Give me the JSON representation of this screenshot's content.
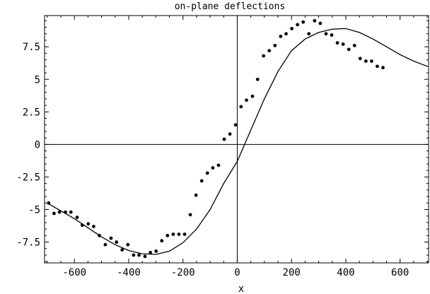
{
  "chart_data": {
    "type": "scatter",
    "title": "on-plane deflections",
    "xlabel": "x",
    "ylabel": "",
    "xlim": [
      -710,
      705
    ],
    "ylim": [
      -9.1,
      9.9
    ],
    "grid": false,
    "xticks": [
      -600,
      -400,
      -200,
      0,
      200,
      400,
      600
    ],
    "xtick_labels": [
      "-600",
      "-400",
      "-200",
      "0",
      "200",
      "400",
      "600"
    ],
    "yticks": [
      -7.5,
      -5,
      -2.5,
      0,
      2.5,
      5,
      7.5
    ],
    "ytick_labels": [
      "-7.5",
      "-5",
      "-2.5",
      "0",
      "2.5",
      "5",
      "7.5"
    ],
    "series": [
      {
        "mode": "markers",
        "color": "#000000",
        "points": [
          [
            -695,
            -4.5
          ],
          [
            -675,
            -5.3
          ],
          [
            -655,
            -5.2
          ],
          [
            -633,
            -5.2
          ],
          [
            -613,
            -5.2
          ],
          [
            -590,
            -5.6
          ],
          [
            -571,
            -6.2
          ],
          [
            -549,
            -6.1
          ],
          [
            -529,
            -6.3
          ],
          [
            -508,
            -7.0
          ],
          [
            -486,
            -7.7
          ],
          [
            -465,
            -7.2
          ],
          [
            -445,
            -7.5
          ],
          [
            -424,
            -8.1
          ],
          [
            -403,
            -7.7
          ],
          [
            -382,
            -8.5
          ],
          [
            -362,
            -8.5
          ],
          [
            -340,
            -8.6
          ],
          [
            -320,
            -8.3
          ],
          [
            -299,
            -8.2
          ],
          [
            -278,
            -7.4
          ],
          [
            -257,
            -7.0
          ],
          [
            -236,
            -6.9
          ],
          [
            -215,
            -6.9
          ],
          [
            -194,
            -6.9
          ],
          [
            -173,
            -5.4
          ],
          [
            -152,
            -3.9
          ],
          [
            -131,
            -2.8
          ],
          [
            -110,
            -2.2
          ],
          [
            -90,
            -1.8
          ],
          [
            -69,
            -1.6
          ],
          [
            -48,
            0.4
          ],
          [
            -27,
            0.8
          ],
          [
            -6,
            1.5
          ],
          [
            14,
            2.9
          ],
          [
            34,
            3.4
          ],
          [
            56,
            3.7
          ],
          [
            75,
            5.0
          ],
          [
            97,
            6.8
          ],
          [
            118,
            7.2
          ],
          [
            139,
            7.6
          ],
          [
            160,
            8.3
          ],
          [
            180,
            8.5
          ],
          [
            201,
            8.9
          ],
          [
            222,
            9.2
          ],
          [
            243,
            9.4
          ],
          [
            264,
            8.5
          ],
          [
            285,
            9.5
          ],
          [
            306,
            9.3
          ],
          [
            327,
            8.5
          ],
          [
            348,
            8.4
          ],
          [
            369,
            7.8
          ],
          [
            390,
            7.7
          ],
          [
            411,
            7.3
          ],
          [
            432,
            7.6
          ],
          [
            453,
            6.6
          ],
          [
            474,
            6.4
          ],
          [
            495,
            6.4
          ],
          [
            516,
            6.0
          ],
          [
            537,
            5.9
          ]
        ]
      },
      {
        "mode": "line",
        "color": "#000000",
        "points": [
          [
            -700,
            -4.5
          ],
          [
            -650,
            -5.1
          ],
          [
            -600,
            -5.7
          ],
          [
            -550,
            -6.4
          ],
          [
            -500,
            -7.1
          ],
          [
            -450,
            -7.7
          ],
          [
            -400,
            -8.15
          ],
          [
            -350,
            -8.4
          ],
          [
            -300,
            -8.45
          ],
          [
            -250,
            -8.2
          ],
          [
            -200,
            -7.55
          ],
          [
            -150,
            -6.5
          ],
          [
            -100,
            -5.0
          ],
          [
            -50,
            -3.0
          ],
          [
            0,
            -1.3
          ],
          [
            50,
            1.1
          ],
          [
            100,
            3.5
          ],
          [
            150,
            5.6
          ],
          [
            200,
            7.2
          ],
          [
            250,
            8.1
          ],
          [
            300,
            8.6
          ],
          [
            350,
            8.85
          ],
          [
            400,
            8.9
          ],
          [
            450,
            8.6
          ],
          [
            500,
            8.1
          ],
          [
            550,
            7.5
          ],
          [
            600,
            6.9
          ],
          [
            650,
            6.4
          ],
          [
            700,
            6.0
          ]
        ]
      }
    ]
  }
}
